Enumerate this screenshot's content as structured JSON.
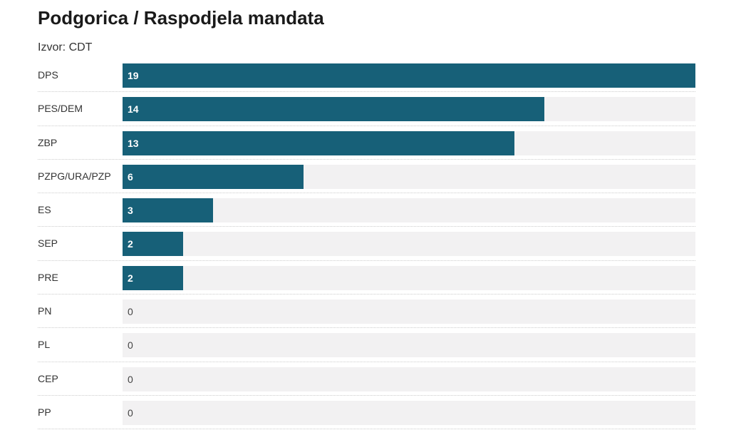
{
  "title": "Podgorica / Raspodjela mandata",
  "source": "Izvor: CDT",
  "colors": {
    "bar": "#176078",
    "track": "#f2f1f2"
  },
  "chart_data": {
    "type": "bar",
    "orientation": "horizontal",
    "title": "Podgorica / Raspodjela mandata",
    "categories": [
      "DPS",
      "PES/DEM",
      "ZBP",
      "PZPG/URA/PZP",
      "ES",
      "SEP",
      "PRE",
      "PN",
      "PL",
      "CEP",
      "PP"
    ],
    "values": [
      19,
      14,
      13,
      6,
      3,
      2,
      2,
      0,
      0,
      0,
      0
    ],
    "xlim": [
      0,
      19
    ],
    "xlabel": "",
    "ylabel": ""
  }
}
